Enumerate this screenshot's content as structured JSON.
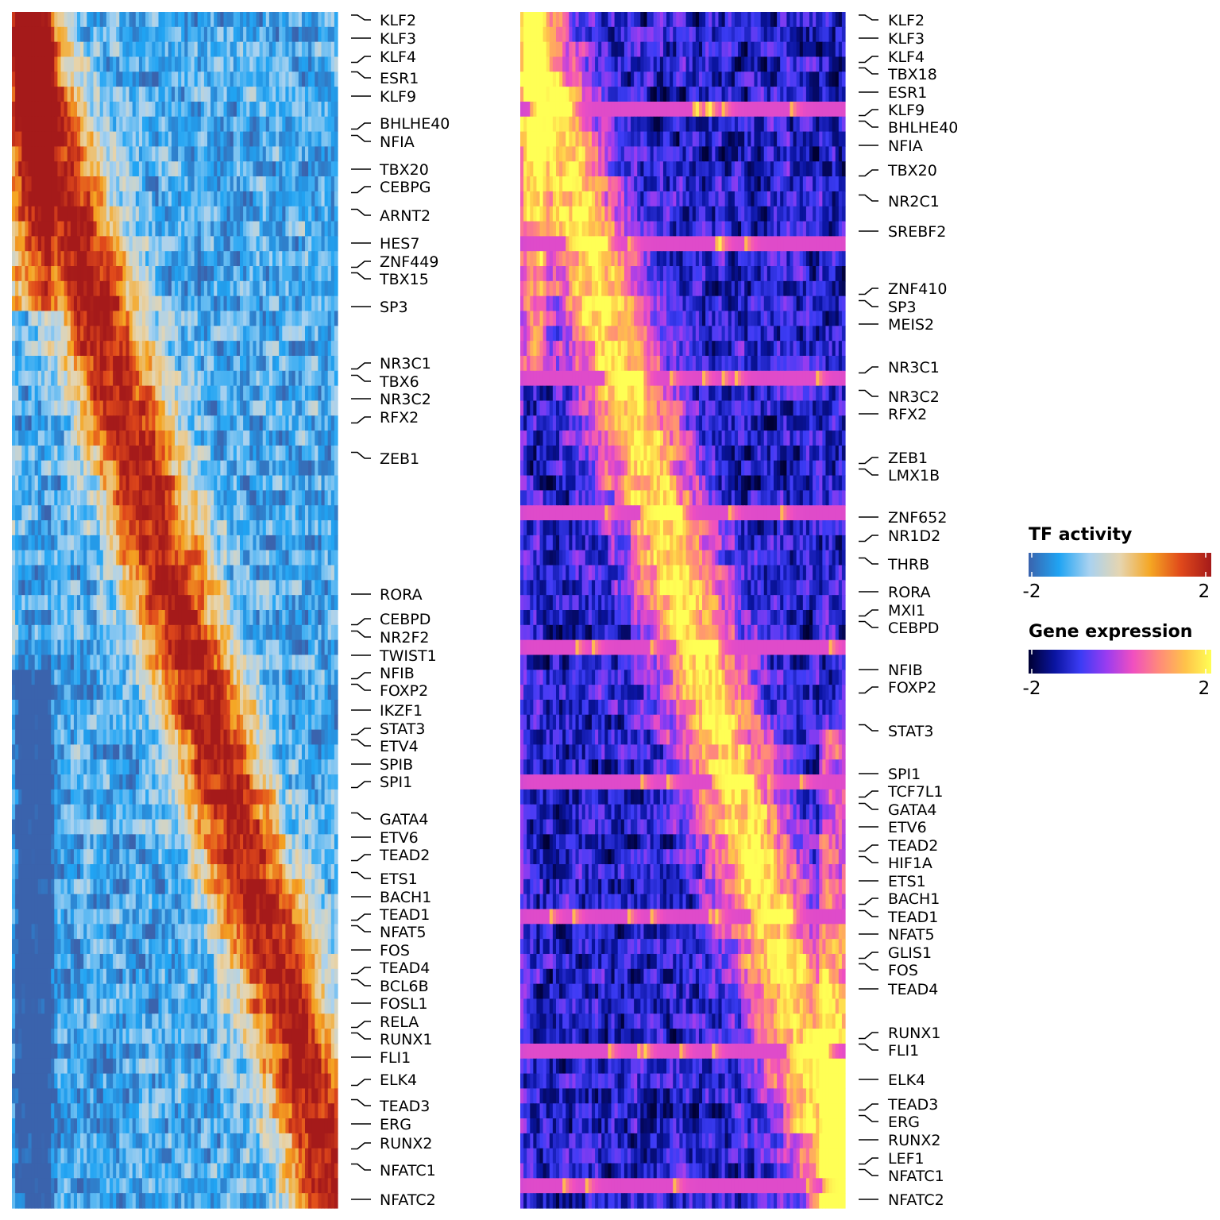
{
  "chart_data": [
    {
      "type": "heatmap",
      "name": "TF activity",
      "rows": 80,
      "columns": 100,
      "value_range": [
        -2,
        2
      ],
      "colors": [
        "#3a63ad",
        "#20a4f3",
        "#a9d2f0",
        "#e6d5b0",
        "#f5a623",
        "#e0491b",
        "#a51a1a"
      ],
      "row_labels": [
        "KLF2",
        "KLF3",
        "KLF4",
        "ESR1",
        "KLF9",
        "BHLHE40",
        "NFIA",
        "TBX20",
        "CEBPG",
        "ARNT2",
        "HES7",
        "ZNF449",
        "TBX15",
        "SP3",
        "NR3C1",
        "TBX6",
        "NR3C2",
        "RFX2",
        "ZEB1",
        "RORA",
        "CEBPD",
        "NR2F2",
        "TWIST1",
        "NFIB",
        "FOXP2",
        "IKZF1",
        "STAT3",
        "ETV4",
        "SPIB",
        "SPI1",
        "GATA4",
        "ETV6",
        "TEAD2",
        "ETS1",
        "BACH1",
        "TEAD1",
        "NFAT5",
        "FOS",
        "TEAD4",
        "BCL6B",
        "FOSL1",
        "RELA",
        "RUNX1",
        "FLI1",
        "ELK4",
        "TEAD3",
        "ERG",
        "RUNX2",
        "NFATC1",
        "NFATC2"
      ]
    },
    {
      "type": "heatmap",
      "name": "Gene expression",
      "rows": 80,
      "columns": 100,
      "value_range": [
        -2,
        2
      ],
      "colors": [
        "#000033",
        "#0a14a0",
        "#3c3cf5",
        "#9b3cf0",
        "#f04fc0",
        "#ff8a7a",
        "#ffc24a",
        "#ffff55"
      ],
      "row_labels": [
        "KLF2",
        "KLF3",
        "KLF4",
        "TBX18",
        "ESR1",
        "KLF9",
        "BHLHE40",
        "NFIA",
        "TBX20",
        "NR2C1",
        "SREBF2",
        "ZNF410",
        "SP3",
        "MEIS2",
        "NR3C1",
        "NR3C2",
        "RFX2",
        "ZEB1",
        "LMX1B",
        "ZNF652",
        "NR1D2",
        "THRB",
        "RORA",
        "MXI1",
        "CEBPD",
        "NFIB",
        "FOXP2",
        "STAT3",
        "SPI1",
        "TCF7L1",
        "GATA4",
        "ETV6",
        "TEAD2",
        "HIF1A",
        "ETS1",
        "BACH1",
        "TEAD1",
        "NFAT5",
        "GLIS1",
        "FOS",
        "TEAD4",
        "RUNX1",
        "FLI1",
        "ELK4",
        "TEAD3",
        "ERG",
        "RUNX2",
        "LEF1",
        "NFATC1",
        "NFATC2"
      ]
    }
  ],
  "legends": [
    {
      "title": "TF activity",
      "min_label": "-2",
      "max_label": "2"
    },
    {
      "title": "Gene expression",
      "min_label": "-2",
      "max_label": "2"
    }
  ]
}
